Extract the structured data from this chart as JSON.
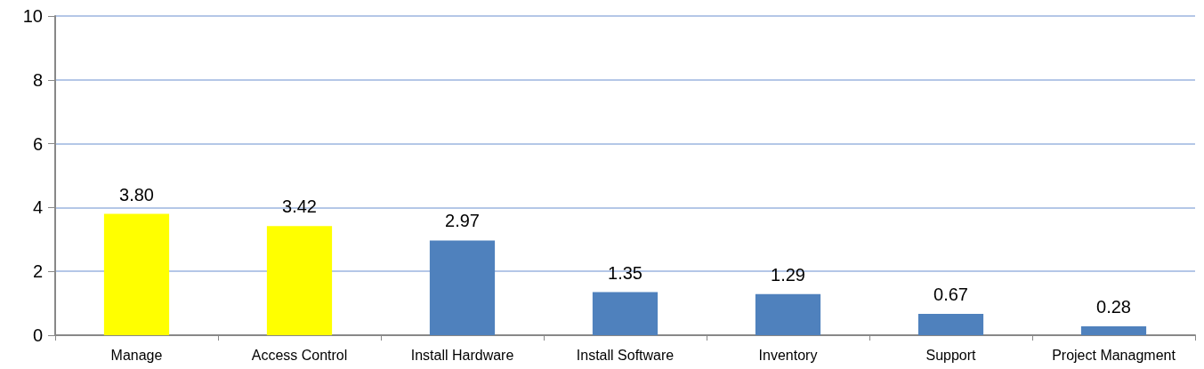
{
  "chart_data": {
    "type": "bar",
    "categories": [
      "Manage",
      "Access Control",
      "Install Hardware",
      "Install Software",
      "Inventory",
      "Support",
      "Project Managment"
    ],
    "values": [
      3.8,
      3.42,
      2.97,
      1.35,
      1.29,
      0.67,
      0.28
    ],
    "colors": [
      "#ffff00",
      "#ffff00",
      "#4f81bd",
      "#4f81bd",
      "#4f81bd",
      "#4f81bd",
      "#4f81bd"
    ],
    "value_labels": [
      "3.80",
      "3.42",
      "2.97",
      "1.35",
      "1.29",
      "0.67",
      "0.28"
    ],
    "ylim": [
      0,
      10
    ],
    "yticks": [
      0,
      2,
      4,
      6,
      8,
      10
    ],
    "grid": "y"
  }
}
